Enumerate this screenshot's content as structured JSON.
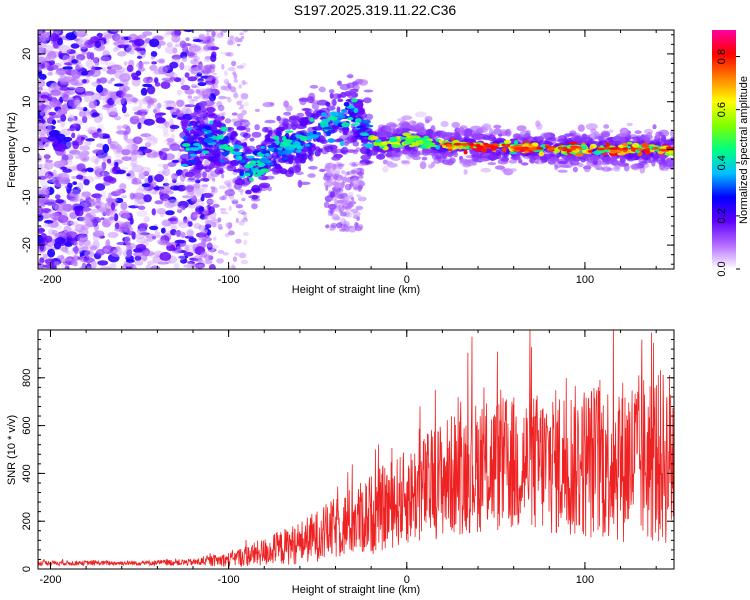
{
  "title": "S197.2025.319.11.22.C36",
  "chart_data": [
    {
      "type": "heatmap",
      "name": "spectrogram",
      "xlabel": "Height of straight line (km)",
      "ylabel": "Frequency (Hz)",
      "xlim": [
        -207,
        150
      ],
      "ylim": [
        -25,
        25
      ],
      "xticks": [
        -200,
        -100,
        0,
        100
      ],
      "yticks": [
        -20,
        -10,
        0,
        10,
        20
      ],
      "colorbar": {
        "label": "Normalized spectral amplitude",
        "range": [
          0,
          0.9
        ],
        "ticks": [
          "0.0",
          "0.2",
          "0.4",
          "0.6",
          "0.8"
        ],
        "colors": [
          "#ffffff",
          "#b46cff",
          "#6000ff",
          "#0000ff",
          "#00c0ff",
          "#00ff80",
          "#80ff00",
          "#ffff00",
          "#ff8000",
          "#ff0000",
          "#ff00a0"
        ]
      },
      "ridge": [
        {
          "x": -125,
          "f": 0
        },
        {
          "x": -110,
          "f": 2
        },
        {
          "x": -95,
          "f": -1
        },
        {
          "x": -85,
          "f": -4
        },
        {
          "x": -75,
          "f": 0
        },
        {
          "x": -60,
          "f": 1
        },
        {
          "x": -50,
          "f": 4
        },
        {
          "x": -40,
          "f": 6
        },
        {
          "x": -30,
          "f": 7
        },
        {
          "x": -22,
          "f": 3
        },
        {
          "x": -15,
          "f": 1
        },
        {
          "x": 0,
          "f": 2
        },
        {
          "x": 20,
          "f": 1
        },
        {
          "x": 50,
          "f": 0.5
        },
        {
          "x": 100,
          "f": 0
        },
        {
          "x": 150,
          "f": 0
        }
      ]
    },
    {
      "type": "line",
      "name": "snr",
      "xlabel": "Height of straight line (km)",
      "ylabel": "SNR (10 * v/v)",
      "xlim": [
        -207,
        150
      ],
      "ylim": [
        0,
        1000
      ],
      "xticks": [
        -200,
        -100,
        0,
        100
      ],
      "yticks": [
        0,
        200,
        400,
        600,
        800
      ],
      "color": "#ee2222",
      "envelope": [
        {
          "x": -207,
          "mean": 25,
          "spread": 10
        },
        {
          "x": -150,
          "mean": 25,
          "spread": 10
        },
        {
          "x": -120,
          "mean": 28,
          "spread": 15
        },
        {
          "x": -100,
          "mean": 40,
          "spread": 30
        },
        {
          "x": -80,
          "mean": 70,
          "spread": 60
        },
        {
          "x": -60,
          "mean": 110,
          "spread": 90
        },
        {
          "x": -40,
          "mean": 170,
          "spread": 130
        },
        {
          "x": -20,
          "mean": 230,
          "spread": 170
        },
        {
          "x": 0,
          "mean": 300,
          "spread": 200
        },
        {
          "x": 20,
          "mean": 380,
          "spread": 250
        },
        {
          "x": 40,
          "mean": 430,
          "spread": 280
        },
        {
          "x": 70,
          "mean": 440,
          "spread": 300
        },
        {
          "x": 100,
          "mean": 450,
          "spread": 330
        },
        {
          "x": 130,
          "mean": 460,
          "spread": 360
        },
        {
          "x": 150,
          "mean": 470,
          "spread": 380
        }
      ]
    }
  ]
}
